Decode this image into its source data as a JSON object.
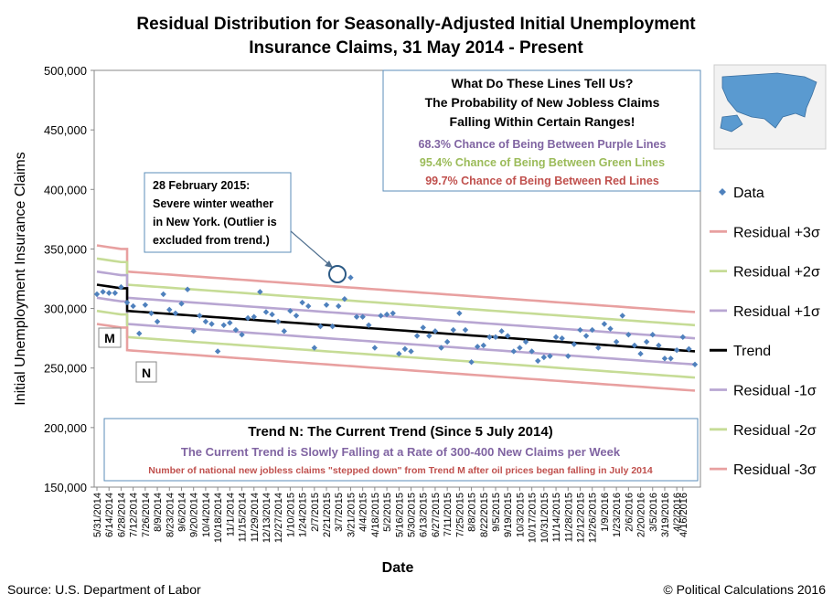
{
  "chart_data": {
    "type": "scatter",
    "title_line1": "Residual Distribution for Seasonally-Adjusted Initial Unemployment",
    "title_line2": "Insurance Claims, 31 May 2014 - Present",
    "ylabel": "Initial Unemployment Insurance Claims",
    "xlabel": "Date",
    "ylim": [
      150000,
      500000
    ],
    "yticks": [
      "150,000",
      "200,000",
      "250,000",
      "300,000",
      "350,000",
      "400,000",
      "450,000",
      "500,000"
    ],
    "ytick_values": [
      150000,
      200000,
      250000,
      300000,
      350000,
      400000,
      450000,
      500000
    ],
    "xticks": [
      "5/31/2014",
      "6/14/2014",
      "6/28/2014",
      "7/12/2014",
      "7/26/2014",
      "8/9/2014",
      "8/23/2014",
      "9/6/2014",
      "9/20/2014",
      "10/4/2014",
      "10/18/2014",
      "11/1/2014",
      "11/15/2014",
      "11/29/2014",
      "12/13/2014",
      "12/27/2014",
      "1/10/2015",
      "1/24/2015",
      "2/7/2015",
      "2/21/2015",
      "3/7/2015",
      "3/21/2015",
      "4/4/2015",
      "4/18/2015",
      "5/2/2015",
      "5/16/2015",
      "5/30/2015",
      "6/13/2015",
      "6/27/2015",
      "7/11/2015",
      "7/25/2015",
      "8/8/2015",
      "8/22/2015",
      "9/5/2015",
      "9/19/2015",
      "10/3/2015",
      "10/17/2015",
      "10/31/2015",
      "11/14/2015",
      "11/28/2015",
      "12/12/2015",
      "12/26/2015",
      "1/9/2016",
      "1/23/2016",
      "2/6/2016",
      "2/20/2016",
      "3/5/2016",
      "3/19/2016",
      "4/2/2016",
      "4/16/2016"
    ],
    "series": [
      {
        "name": "Data",
        "values": [
          312000,
          314000,
          313000,
          313000,
          318000,
          305000,
          302000,
          279000,
          303000,
          296000,
          289000,
          312000,
          299000,
          296000,
          304000,
          316000,
          281000,
          294000,
          289000,
          287000,
          264000,
          286000,
          288000,
          282000,
          278000,
          292000,
          293000,
          314000,
          297000,
          295000,
          289000,
          281000,
          298000,
          294000,
          305000,
          302000,
          267000,
          285000,
          303000,
          285000,
          302000,
          308000,
          326000,
          293000,
          293000,
          286000,
          267000,
          294000,
          295000,
          296000,
          262000,
          266000,
          264000,
          277000,
          284000,
          277000,
          281000,
          267000,
          272000,
          282000,
          296000,
          282000,
          255000,
          268000,
          269000,
          276000,
          276000,
          281000,
          277000,
          264000,
          267000,
          272000,
          264000,
          256000,
          259000,
          260000,
          276000,
          275000,
          260000,
          270000,
          282000,
          277000,
          282000,
          267000,
          287000,
          283000,
          272000,
          294000,
          278000,
          269000,
          262000,
          272000,
          278000,
          269000,
          258000,
          258000,
          265000,
          276000,
          266000,
          253000
        ]
      }
    ],
    "trend": {
      "name": "Trend",
      "m_label": "M",
      "n_label": "N",
      "m_values": [
        320000,
        317000
      ],
      "n_values": [
        298000,
        264000
      ]
    },
    "bands": [
      {
        "name": "Residual +3σ",
        "color": "#e8a0a0",
        "offset": 33000
      },
      {
        "name": "Residual +2σ",
        "color": "#c6dc96",
        "offset": 22000
      },
      {
        "name": "Residual +1σ",
        "color": "#b8a6d2",
        "offset": 11000
      },
      {
        "name": "Residual -1σ",
        "color": "#b8a6d2",
        "offset": -11000
      },
      {
        "name": "Residual -2σ",
        "color": "#c6dc96",
        "offset": -22000
      },
      {
        "name": "Residual -3σ",
        "color": "#e8a0a0",
        "offset": -33000
      }
    ],
    "colors": {
      "data": "#4f81bd",
      "trend": "#000000",
      "purple": "#8064a2",
      "green": "#9bbb59",
      "red": "#c0504d"
    },
    "annotation": {
      "lines": [
        "28 February 2015:",
        "Severe winter weather",
        "in New York. (Outlier is",
        "excluded from trend.)"
      ]
    },
    "info_box": {
      "title1": "What Do These Lines Tell Us?",
      "title2": "The Probability of New Jobless Claims",
      "title3": "Falling Within Certain Ranges!",
      "purple": "68.3% Chance of Being Between Purple Lines",
      "green": "95.4% Chance of Being Between Green Lines",
      "red": "99.7% Chance of Being Between Red Lines"
    },
    "trend_box": {
      "title": "Trend N: The Current Trend (Since 5 July 2014)",
      "line1": "The Current Trend is Slowly Falling at a Rate of 300-400 New Claims per Week",
      "line2": "Number of national  new jobless claims  \"stepped down\" from Trend M after oil prices began falling  in July 2014"
    },
    "legend": [
      "Data",
      "Residual +3σ",
      "Residual +2σ",
      "Residual +1σ",
      "Trend",
      "Residual -1σ",
      "Residual -2σ",
      "Residual -3σ"
    ]
  },
  "footer": {
    "source": "Source: U.S. Department of Labor",
    "copyright": "© Political Calculations 2016"
  }
}
